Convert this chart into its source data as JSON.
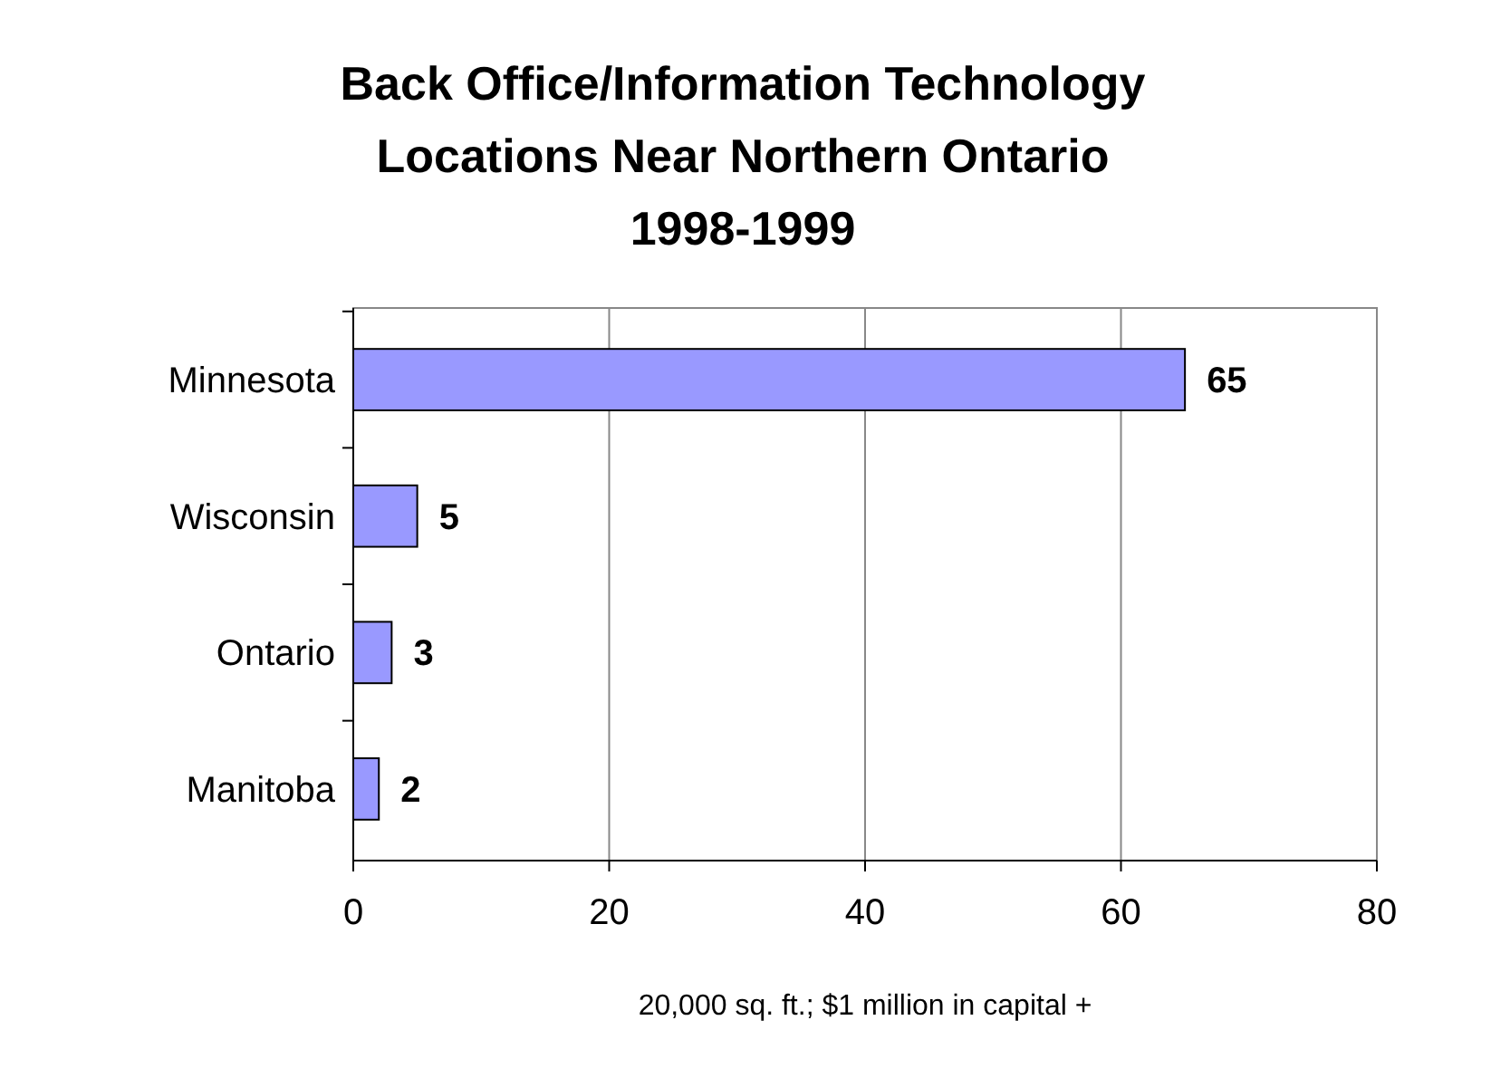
{
  "chart_data": {
    "type": "bar",
    "orientation": "horizontal",
    "title": "Back Office/Information Technology\nLocations Near Northern Ontario\n1998-1999",
    "xlabel": "20,000 sq. ft.; $1 million in capital +",
    "categories": [
      "Minnesota",
      "Wisconsin",
      "Ontario",
      "Manitoba"
    ],
    "values": [
      65,
      5,
      3,
      2
    ],
    "color": "#9999ff",
    "xlim": [
      0,
      80
    ],
    "xticks": [
      0,
      20,
      40,
      60,
      80
    ],
    "grid": "x",
    "data_labels": true
  }
}
